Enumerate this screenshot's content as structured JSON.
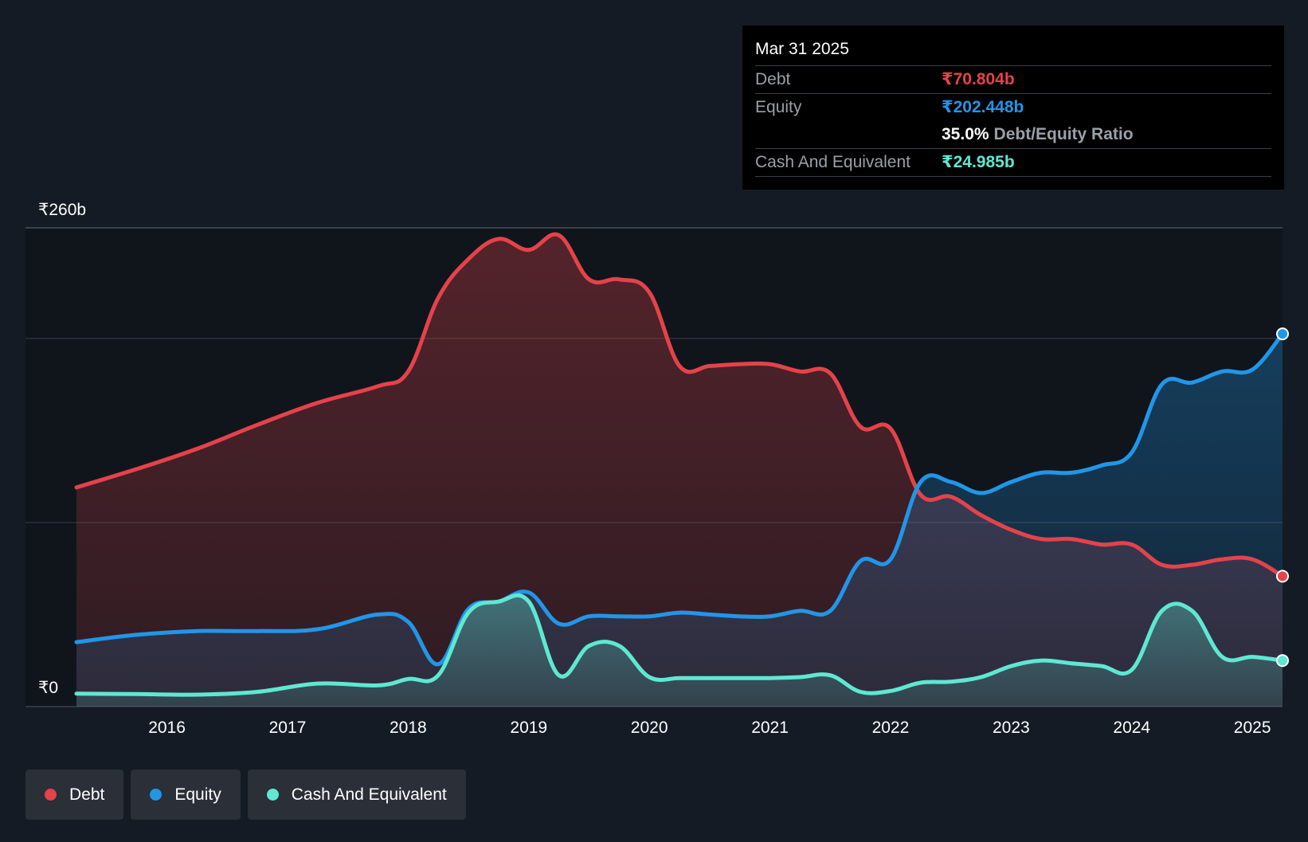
{
  "colors": {
    "debt": "#e5424a",
    "equity": "#2196e8",
    "cash": "#5ee8d2",
    "background": "#151b24",
    "plot_background": "#10151c"
  },
  "tooltip": {
    "date": "Mar 31 2025",
    "debt_label": "Debt",
    "debt_value": "₹70.804b",
    "equity_label": "Equity",
    "equity_value": "₹202.448b",
    "ratio_value": "35.0%",
    "ratio_label": "Debt/Equity Ratio",
    "cash_label": "Cash And Equivalent",
    "cash_value": "₹24.985b"
  },
  "legend": {
    "debt": "Debt",
    "equity": "Equity",
    "cash": "Cash And Equivalent"
  },
  "chart_data": {
    "type": "area",
    "title": "",
    "xlabel": "",
    "ylabel": "",
    "ylim": [
      0,
      260
    ],
    "xlim": [
      2015.25,
      2025.25
    ],
    "y_tick_labels": [
      "₹0",
      "₹260b"
    ],
    "x_ticks": [
      {
        "value": 2016,
        "label": "2016"
      },
      {
        "value": 2017,
        "label": "2017"
      },
      {
        "value": 2018,
        "label": "2018"
      },
      {
        "value": 2019,
        "label": "2019"
      },
      {
        "value": 2020,
        "label": "2020"
      },
      {
        "value": 2021,
        "label": "2021"
      },
      {
        "value": 2022,
        "label": "2022"
      },
      {
        "value": 2023,
        "label": "2023"
      },
      {
        "value": 2024,
        "label": "2024"
      },
      {
        "value": 2025,
        "label": "2025"
      }
    ],
    "gridlines": [
      0,
      100,
      200,
      260
    ],
    "series": [
      {
        "name": "Debt",
        "color_key": "debt",
        "points": [
          [
            2015.25,
            119
          ],
          [
            2015.75,
            129
          ],
          [
            2016.25,
            140
          ],
          [
            2016.75,
            153
          ],
          [
            2017.25,
            165
          ],
          [
            2017.75,
            174
          ],
          [
            2018.0,
            182
          ],
          [
            2018.25,
            222
          ],
          [
            2018.5,
            243
          ],
          [
            2018.75,
            254
          ],
          [
            2019.0,
            248
          ],
          [
            2019.25,
            256
          ],
          [
            2019.5,
            232
          ],
          [
            2019.75,
            232
          ],
          [
            2020.0,
            225
          ],
          [
            2020.25,
            185
          ],
          [
            2020.5,
            185
          ],
          [
            2020.75,
            186
          ],
          [
            2021.0,
            186
          ],
          [
            2021.25,
            182
          ],
          [
            2021.5,
            181
          ],
          [
            2021.75,
            152
          ],
          [
            2022.0,
            151
          ],
          [
            2022.25,
            115
          ],
          [
            2022.5,
            114
          ],
          [
            2022.75,
            104
          ],
          [
            2023.0,
            96
          ],
          [
            2023.25,
            91
          ],
          [
            2023.5,
            91
          ],
          [
            2023.75,
            88
          ],
          [
            2024.0,
            88
          ],
          [
            2024.25,
            77
          ],
          [
            2024.5,
            77
          ],
          [
            2024.75,
            80
          ],
          [
            2025.0,
            80
          ],
          [
            2025.25,
            70.8
          ]
        ]
      },
      {
        "name": "Equity",
        "color_key": "equity",
        "points": [
          [
            2015.25,
            35
          ],
          [
            2015.75,
            39
          ],
          [
            2016.25,
            41
          ],
          [
            2016.75,
            41
          ],
          [
            2017.25,
            42
          ],
          [
            2017.75,
            50
          ],
          [
            2018.0,
            46
          ],
          [
            2018.25,
            23
          ],
          [
            2018.5,
            53
          ],
          [
            2018.75,
            57
          ],
          [
            2019.0,
            62
          ],
          [
            2019.25,
            45
          ],
          [
            2019.5,
            49
          ],
          [
            2019.75,
            49
          ],
          [
            2020.0,
            49
          ],
          [
            2020.25,
            51
          ],
          [
            2020.5,
            50
          ],
          [
            2020.75,
            49
          ],
          [
            2021.0,
            49
          ],
          [
            2021.25,
            52
          ],
          [
            2021.5,
            52
          ],
          [
            2021.75,
            79
          ],
          [
            2022.0,
            80
          ],
          [
            2022.25,
            122
          ],
          [
            2022.5,
            122
          ],
          [
            2022.75,
            116
          ],
          [
            2023.0,
            122
          ],
          [
            2023.25,
            127
          ],
          [
            2023.5,
            127
          ],
          [
            2023.75,
            131
          ],
          [
            2024.0,
            138
          ],
          [
            2024.25,
            175
          ],
          [
            2024.5,
            176
          ],
          [
            2024.75,
            182
          ],
          [
            2025.0,
            183
          ],
          [
            2025.25,
            202.4
          ]
        ]
      },
      {
        "name": "Cash And Equivalent",
        "color_key": "cash",
        "points": [
          [
            2015.25,
            7
          ],
          [
            2015.75,
            6.8
          ],
          [
            2016.25,
            6.5
          ],
          [
            2016.75,
            8
          ],
          [
            2017.25,
            12.5
          ],
          [
            2017.75,
            11.5
          ],
          [
            2018.0,
            15
          ],
          [
            2018.25,
            17
          ],
          [
            2018.5,
            51
          ],
          [
            2018.75,
            57
          ],
          [
            2019.0,
            57
          ],
          [
            2019.25,
            17
          ],
          [
            2019.5,
            33
          ],
          [
            2019.75,
            33
          ],
          [
            2020.0,
            16
          ],
          [
            2020.25,
            15.5
          ],
          [
            2020.5,
            15.5
          ],
          [
            2020.75,
            15.5
          ],
          [
            2021.0,
            15.5
          ],
          [
            2021.25,
            16
          ],
          [
            2021.5,
            17
          ],
          [
            2021.75,
            8
          ],
          [
            2022.0,
            8.5
          ],
          [
            2022.25,
            13
          ],
          [
            2022.5,
            13.5
          ],
          [
            2022.75,
            16
          ],
          [
            2023.0,
            22
          ],
          [
            2023.25,
            25
          ],
          [
            2023.5,
            23.5
          ],
          [
            2023.75,
            22
          ],
          [
            2024.0,
            20
          ],
          [
            2024.25,
            52
          ],
          [
            2024.5,
            52
          ],
          [
            2024.75,
            27
          ],
          [
            2025.0,
            27
          ],
          [
            2025.25,
            25.0
          ]
        ]
      }
    ]
  }
}
